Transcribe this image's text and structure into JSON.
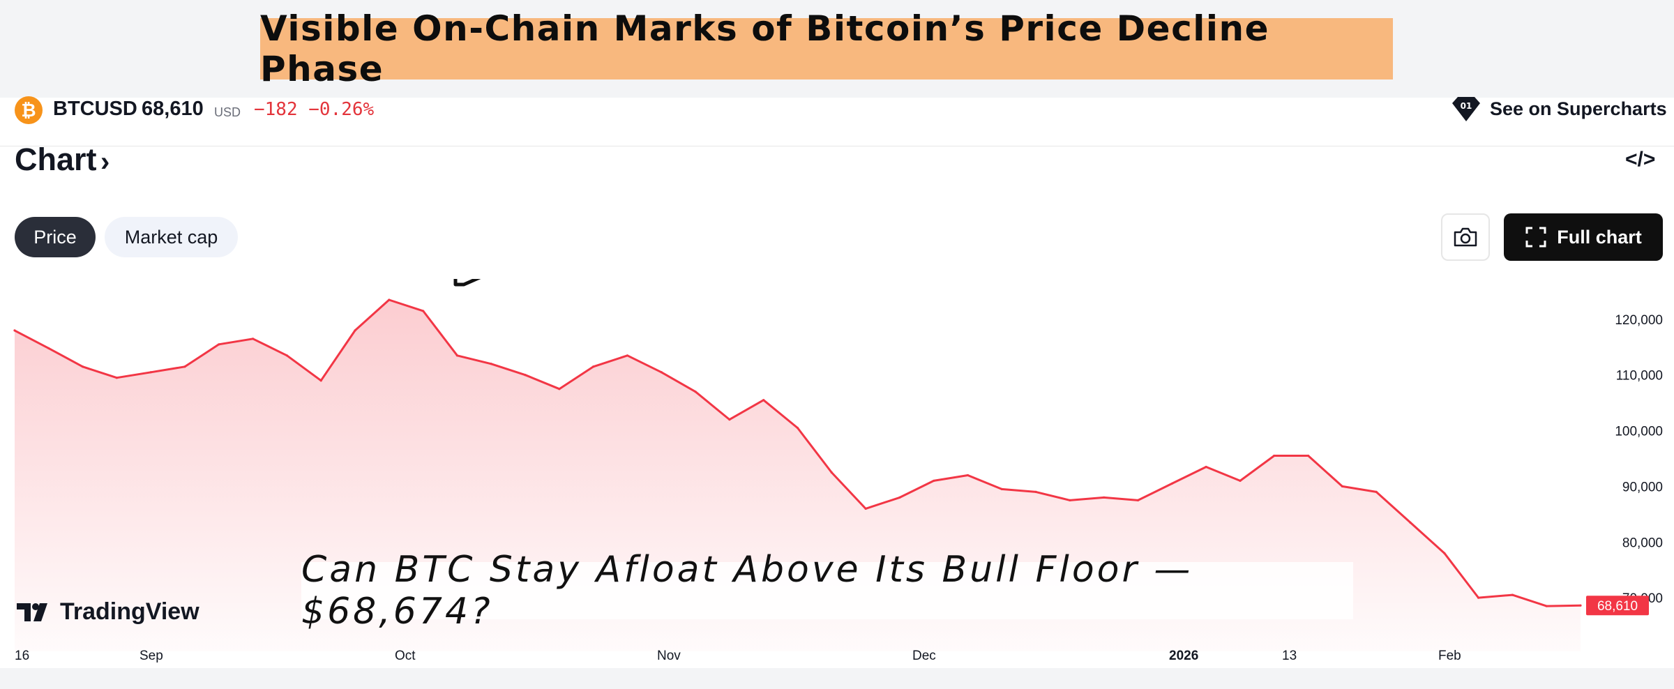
{
  "headline": "Visible On-Chain Marks of Bitcoin’s Price Decline Phase",
  "ticker": {
    "logo_glyph": "₿",
    "symbol": "BTCUSD",
    "price": "68,610",
    "unit": "USD",
    "change": "−182 −0.26%",
    "see_label": "See on Supercharts"
  },
  "chart_header": {
    "title": "Chart",
    "embed_label": "</>"
  },
  "tabs": [
    {
      "label": "Price"
    },
    {
      "label": "Market cap"
    }
  ],
  "full_chart_label": "Full chart",
  "brand": "TradingView",
  "caption": "Can BTC Stay Afloat Above Its Bull Floor — $68,674?",
  "colors": {
    "line": "#f23645",
    "accent": "#f8b87e",
    "price_tag": "#f23645"
  },
  "icons": [
    "bitcoin-hand-icon",
    "camera-icon",
    "fullscreen-icon",
    "supercharts-icon",
    "code-icon"
  ],
  "chart_data": {
    "type": "area",
    "series": [
      {
        "x": [
          "Aug 16",
          "Aug 21",
          "Aug 26",
          "Aug 31",
          "Sep 5",
          "Sep 10",
          "Sep 15",
          "Sep 20",
          "Sep 25",
          "Sep 30",
          "Oct 3",
          "Oct 6",
          "Oct 9",
          "Oct 10",
          "Oct 11",
          "Oct 14",
          "Oct 18",
          "Oct 22",
          "Oct 26",
          "Oct 29",
          "Nov 3",
          "Nov 6",
          "Nov 10",
          "Nov 14",
          "Nov 18",
          "Nov 21",
          "Nov 24",
          "Nov 28",
          "Dec 3",
          "Dec 8",
          "Dec 14",
          "Dec 20",
          "Dec 26",
          "Dec 31",
          "Jan 3",
          "Jan 7",
          "Jan 10",
          "Jan 14",
          "Jan 18",
          "Jan 23",
          "Jan 28",
          "Jan 31",
          "Feb 3",
          "Feb 6",
          "Feb 9",
          "Feb 12",
          "Feb 15"
        ],
        "values": [
          118000,
          114800,
          111500,
          109500,
          110500,
          111500,
          115500,
          116500,
          113500,
          109000,
          118000,
          123500,
          121500,
          113500,
          112000,
          110000,
          107500,
          111500,
          113500,
          110500,
          107000,
          102000,
          105500,
          100500,
          92500,
          86000,
          88000,
          91000,
          92000,
          89500,
          89000,
          87500,
          88000,
          87500,
          90500,
          93500,
          91000,
          95500,
          95500,
          90000,
          89000,
          83500,
          78000,
          70000,
          70500,
          68500,
          68610
        ]
      }
    ],
    "x_ticks": [
      "16",
      "Sep",
      "Oct",
      "Nov",
      "Dec",
      "2026",
      "13",
      "Feb"
    ],
    "y_ticks": [
      "120,000",
      "110,000",
      "100,000",
      "90,000",
      "80,000",
      "70,000"
    ],
    "y_tick_values": [
      120000,
      110000,
      100000,
      90000,
      80000,
      70000
    ],
    "last_price_label": "68,610",
    "ylim": [
      64000,
      126000
    ]
  }
}
